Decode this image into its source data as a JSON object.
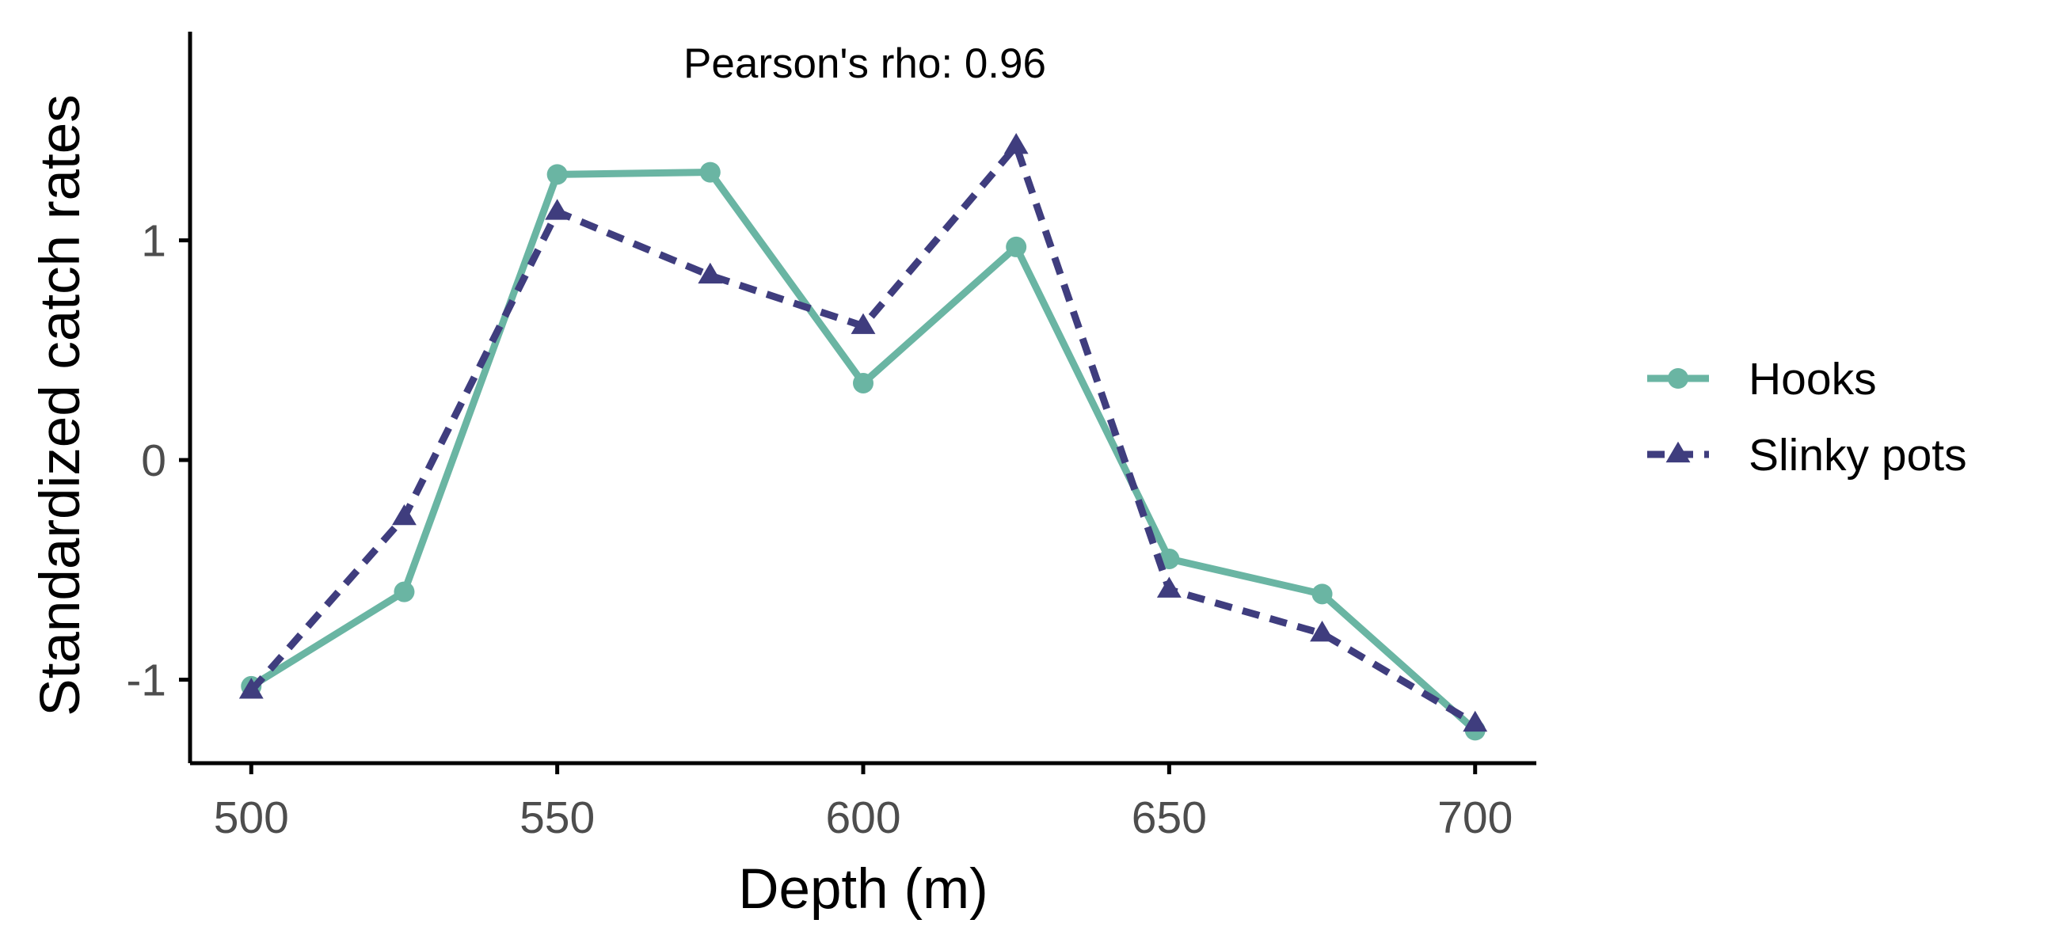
{
  "chart_data": {
    "type": "line",
    "title": "",
    "xlabel": "Depth (m)",
    "ylabel": "Standardized catch rates",
    "x": [
      500,
      525,
      550,
      575,
      600,
      625,
      650,
      675,
      700
    ],
    "xticks": [
      500,
      550,
      600,
      650,
      700
    ],
    "yticks": [
      -1,
      0,
      1
    ],
    "xlim": [
      490,
      710
    ],
    "ylim": [
      -1.38,
      1.95
    ],
    "grid": false,
    "legend_position": "right",
    "annotation": "Pearson's rho: 0.96",
    "series": [
      {
        "name": "Hooks",
        "values": [
          -1.03,
          -0.6,
          1.3,
          1.31,
          0.35,
          0.97,
          -0.45,
          -0.61,
          -1.23
        ],
        "color": "#6ab5a3",
        "line": "solid",
        "marker": "circle"
      },
      {
        "name": "Slinky pots",
        "values": [
          -1.05,
          -0.26,
          1.13,
          0.84,
          0.61,
          1.43,
          -0.59,
          -0.79,
          -1.2
        ],
        "color": "#3f3d7e",
        "line": "dashed",
        "marker": "triangle"
      }
    ]
  }
}
